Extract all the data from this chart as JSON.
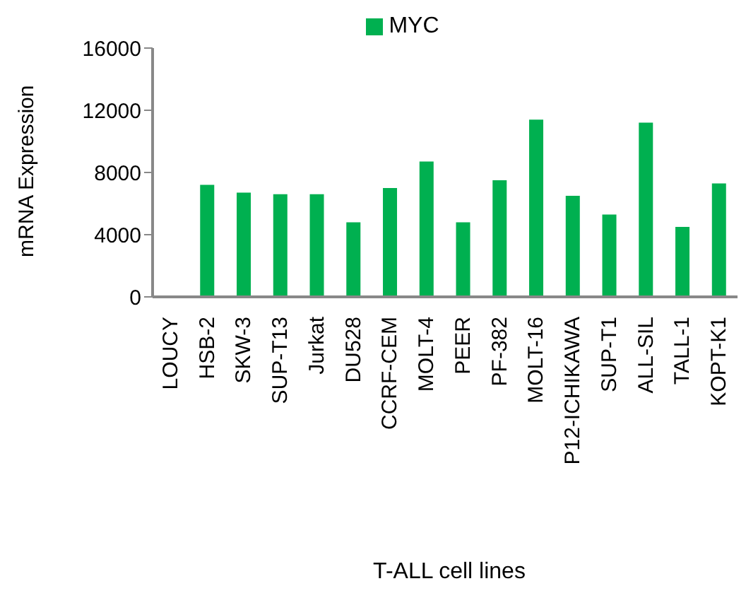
{
  "chart_data": {
    "type": "bar",
    "xlabel": "T-ALL cell lines",
    "ylabel": "mRNA Expression",
    "categories": [
      "LOUCY",
      "HSB-2",
      "SKW-3",
      "SUP-T13",
      "Jurkat",
      "DU528",
      "CCRF-CEM",
      "MOLT-4",
      "PEER",
      "PF-382",
      "MOLT-16",
      "P12-ICHIKAWA",
      "SUP-T1",
      "ALL-SIL",
      "TALL-1",
      "KOPT-K1"
    ],
    "series": [
      {
        "name": "MYC",
        "color": "#00b050",
        "values": [
          0,
          7200,
          6700,
          6600,
          6600,
          4800,
          7000,
          8700,
          4800,
          7500,
          11400,
          6500,
          5300,
          11200,
          4500,
          7300
        ]
      }
    ],
    "ylim": [
      0,
      16000
    ],
    "yticks": [
      0,
      4000,
      8000,
      12000,
      16000
    ],
    "legend": "top"
  }
}
